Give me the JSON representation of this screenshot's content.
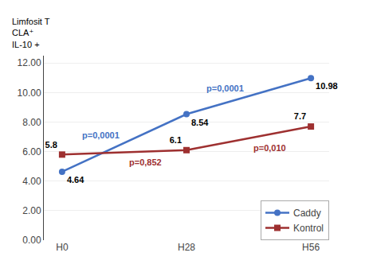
{
  "chart_data": {
    "type": "line",
    "ylabel": "Limfosit T\nCLA⁺\nIL-10 +",
    "categories": [
      "H0",
      "H28",
      "H56"
    ],
    "series": [
      {
        "name": "Caddy",
        "color": "#4472C4",
        "marker": "circle",
        "values": [
          4.64,
          8.54,
          10.98
        ]
      },
      {
        "name": "Kontrol",
        "color": "#9E3030",
        "marker": "square",
        "values": [
          5.8,
          6.1,
          7.7
        ]
      }
    ],
    "annotations": [
      {
        "text": "p=0,0001",
        "color": "#4472C4"
      },
      {
        "text": "p=0,852",
        "color": "#9E3030"
      },
      {
        "text": "p=0,0001",
        "color": "#4472C4"
      },
      {
        "text": "p=0,010",
        "color": "#9E3030"
      }
    ],
    "ylim": [
      0,
      12.5
    ],
    "yticks": [
      {
        "value": 0,
        "label": "0.00"
      },
      {
        "value": 2,
        "label": "2.00"
      },
      {
        "value": 4,
        "label": "4.00"
      },
      {
        "value": 6,
        "label": "6.00"
      },
      {
        "value": 8,
        "label": "8.00"
      },
      {
        "value": 10,
        "label": "10.00"
      },
      {
        "value": 12,
        "label": "12.00"
      }
    ],
    "grid": true,
    "legend": "lower right",
    "data_labels": true
  }
}
